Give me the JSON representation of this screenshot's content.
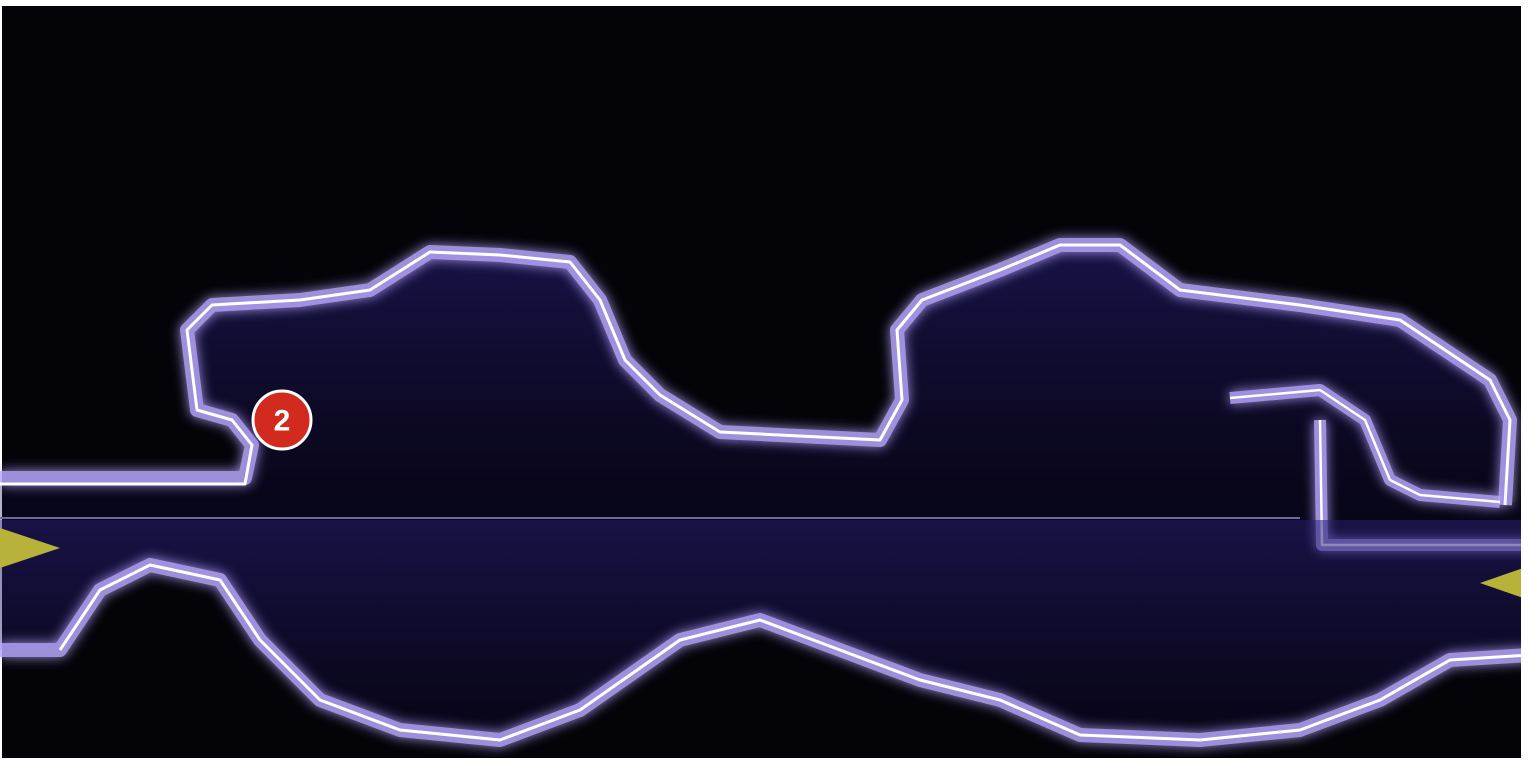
{
  "marker": {
    "label": "2"
  }
}
